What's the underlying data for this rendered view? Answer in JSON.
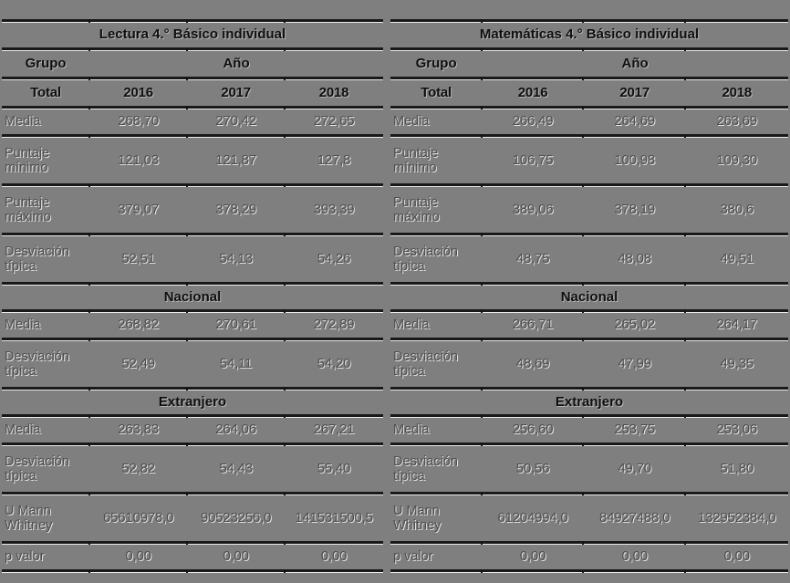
{
  "colors": {
    "background": "#7f7f7f",
    "line": "#191919",
    "header_text": "#0f0f0f",
    "value_text": "#4e4e4e",
    "emboss_highlight": "#ffffff"
  },
  "tables": [
    {
      "title": "Lectura 4.° Básico individual",
      "header": {
        "group": "Grupo",
        "year": "Año"
      },
      "columns": [
        "Total",
        "2016",
        "2017",
        "2018"
      ],
      "sections": [
        {
          "header": "",
          "rows": [
            {
              "label": "Media",
              "values": [
                "268,70",
                "270,42",
                "272,65"
              ]
            },
            {
              "label": "Puntaje mínimo",
              "values": [
                "121,03",
                "121,87",
                "127,8"
              ]
            },
            {
              "label": "Puntaje máximo",
              "values": [
                "379,07",
                "378,29",
                "393,39"
              ]
            },
            {
              "label": "Desviación típica",
              "values": [
                "52,51",
                "54,13",
                "54,26"
              ]
            }
          ]
        },
        {
          "header": "Nacional",
          "rows": [
            {
              "label": "Media",
              "values": [
                "268,82",
                "270,61",
                "272,89"
              ]
            },
            {
              "label": "Desviación típica",
              "values": [
                "52,49",
                "54,11",
                "54,20"
              ]
            }
          ]
        },
        {
          "header": "Extranjero",
          "rows": [
            {
              "label": "Media",
              "values": [
                "263,83",
                "264,06",
                "267,21"
              ]
            },
            {
              "label": "Desviación típica",
              "values": [
                "52,82",
                "54,43",
                "55,40"
              ]
            },
            {
              "label": "U Mann Whitney",
              "values": [
                "65610978,0",
                "90523256,0",
                "141531500,5"
              ]
            },
            {
              "label": "p valor",
              "values": [
                "0,00",
                "0,00",
                "0,00"
              ]
            }
          ]
        }
      ]
    },
    {
      "title": "Matemáticas 4.° Básico individual",
      "header": {
        "group": "Grupo",
        "year": "Año"
      },
      "columns": [
        "Total",
        "2016",
        "2017",
        "2018"
      ],
      "sections": [
        {
          "header": "",
          "rows": [
            {
              "label": "Media",
              "values": [
                "266,49",
                "264,69",
                "263,69"
              ]
            },
            {
              "label": "Puntaje mínimo",
              "values": [
                "106,75",
                "100,98",
                "109,30"
              ]
            },
            {
              "label": "Puntaje máximo",
              "values": [
                "389,06",
                "378,19",
                "380,6"
              ]
            },
            {
              "label": "Desviación típica",
              "values": [
                "48,75",
                "48,08",
                "49,51"
              ]
            }
          ]
        },
        {
          "header": "Nacional",
          "rows": [
            {
              "label": "Media",
              "values": [
                "266,71",
                "265,02",
                "264,17"
              ]
            },
            {
              "label": "Desviación típica",
              "values": [
                "48,69",
                "47,99",
                "49,35"
              ]
            }
          ]
        },
        {
          "header": "Extranjero",
          "rows": [
            {
              "label": "Media",
              "values": [
                "256,60",
                "253,75",
                "253,06"
              ]
            },
            {
              "label": "Desviación típica",
              "values": [
                "50,56",
                "49,70",
                "51,80"
              ]
            },
            {
              "label": "U Mann Whitney",
              "values": [
                "61204994,0",
                "84927488,0",
                "132952384,0"
              ]
            },
            {
              "label": "p valor",
              "values": [
                "0,00",
                "0,00",
                "0,00"
              ]
            }
          ]
        }
      ]
    }
  ]
}
